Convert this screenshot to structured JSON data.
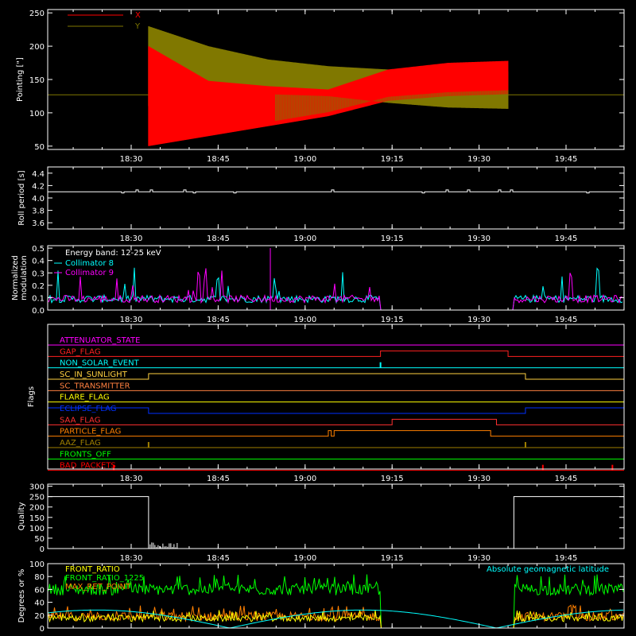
{
  "colors": {
    "background": "#000000",
    "axis": "#ffffff",
    "pointing_x": "#ff0000",
    "pointing_y": "#807800",
    "coll8": "#00ffff",
    "coll9": "#ff00ff",
    "energy_label": "#ffffff",
    "front_ratio": "#ffff00",
    "front_ratio_1225": "#00ff00",
    "max_ret_point": "#ff8000",
    "geomag": "#00ffff"
  },
  "chart_data": [
    {
      "id": "pointing",
      "type": "line",
      "ylabel": "Pointing [\"]",
      "ylim": [
        45,
        255
      ],
      "yticks": [
        50,
        100,
        150,
        200,
        250
      ],
      "xlim_minutes": [
        1090,
        1200
      ],
      "xticks": [
        "18:30",
        "18:45",
        "19:00",
        "19:15",
        "19:30",
        "19:45"
      ],
      "baseline": 127,
      "series": [
        {
          "name": "X",
          "color": "#ff0000",
          "start": "18:33",
          "end": "19:35",
          "center": [
            127,
            127,
            130,
            148,
            150,
            150,
            150
          ],
          "low": [
            50,
            65,
            80,
            95,
            118,
            125,
            128
          ],
          "high": [
            200,
            148,
            140,
            135,
            165,
            175,
            178
          ]
        },
        {
          "name": "Y",
          "color": "#807800",
          "start": "18:33",
          "end": "19:35",
          "low": [
            110,
            125,
            128,
            125,
            115,
            108,
            106
          ],
          "high": [
            230,
            200,
            180,
            170,
            165,
            163,
            162
          ]
        }
      ]
    },
    {
      "id": "roll",
      "type": "line",
      "ylabel": "Roll period [s]",
      "ylim": [
        3.5,
        4.5
      ],
      "yticks": [
        3.6,
        3.8,
        4.0,
        4.2,
        4.4
      ],
      "value": 4.1
    },
    {
      "id": "modulation",
      "type": "line",
      "ylabel": "Normalized modulation",
      "ylim": [
        0,
        0.52
      ],
      "yticks": [
        0.0,
        0.1,
        0.2,
        0.3,
        0.4,
        0.5
      ],
      "legend": [
        "Energy band: 12-25 keV",
        "Collimator 8",
        "Collimator 9"
      ],
      "gap": [
        "19:13",
        "19:36"
      ],
      "typical": 0.09
    },
    {
      "id": "flags",
      "type": "line",
      "ylabel": "Flags",
      "rows": [
        {
          "label": "ATTENUATOR_STATE",
          "color": "#ff00ff",
          "steps": []
        },
        {
          "label": "GAP_FLAG",
          "color": "#ff2020",
          "steps": [
            [
              "19:13",
              "19:35"
            ]
          ]
        },
        {
          "label": "NON_SOLAR_EVENT",
          "color": "#00ffff",
          "steps": [],
          "spikes": [
            "19:13"
          ]
        },
        {
          "label": "SC_IN_SUNLIGHT",
          "color": "#ffd040",
          "steps": [
            [
              "18:33",
              "19:38"
            ]
          ]
        },
        {
          "label": "SC_TRANSMITTER",
          "color": "#ff8040",
          "steps": []
        },
        {
          "label": "FLARE_FLAG",
          "color": "#ffff00",
          "steps": []
        },
        {
          "label": "ECLIPSE_FLAG",
          "color": "#0030ff",
          "steps": [
            [
              "18:00",
              "18:33"
            ],
            [
              "19:38",
              "20:00"
            ]
          ]
        },
        {
          "label": "SAA_FLAG",
          "color": "#ff3030",
          "steps": [
            [
              "19:15",
              "19:33"
            ]
          ]
        },
        {
          "label": "PARTICLE_FLAG",
          "color": "#ff8000",
          "steps": [
            [
              "19:04",
              "19:04.5"
            ],
            [
              "19:05",
              "19:32"
            ]
          ]
        },
        {
          "label": "AAZ_FLAG",
          "color": "#a08000",
          "steps": [],
          "spikes": [
            "18:33",
            "19:38"
          ]
        },
        {
          "label": "FRONTS_OFF",
          "color": "#00ff00",
          "steps": []
        },
        {
          "label": "BAD_PACKETS",
          "color": "#ff0000",
          "steps": [],
          "spikes": [
            "18:27",
            "19:41",
            "19:53"
          ]
        }
      ]
    },
    {
      "id": "quality",
      "type": "line",
      "ylabel": "Quality",
      "ylim": [
        0,
        310
      ],
      "yticks": [
        0,
        50,
        100,
        150,
        200,
        250,
        300
      ],
      "segments": [
        [
          "18:20",
          "18:33",
          250
        ],
        [
          "19:36",
          "20:00",
          250
        ]
      ]
    },
    {
      "id": "geomag",
      "type": "line",
      "ylabel": "Degrees or %",
      "ylim": [
        0,
        100
      ],
      "yticks": [
        0,
        20,
        40,
        60,
        80,
        100
      ],
      "legend": [
        "FRONT_RATIO",
        "FRONT_RATIO_1225",
        "MAX_RET_POINT"
      ],
      "right_label": "Absolute geomagnetic latitude",
      "gap": [
        "19:13",
        "19:36"
      ]
    }
  ]
}
